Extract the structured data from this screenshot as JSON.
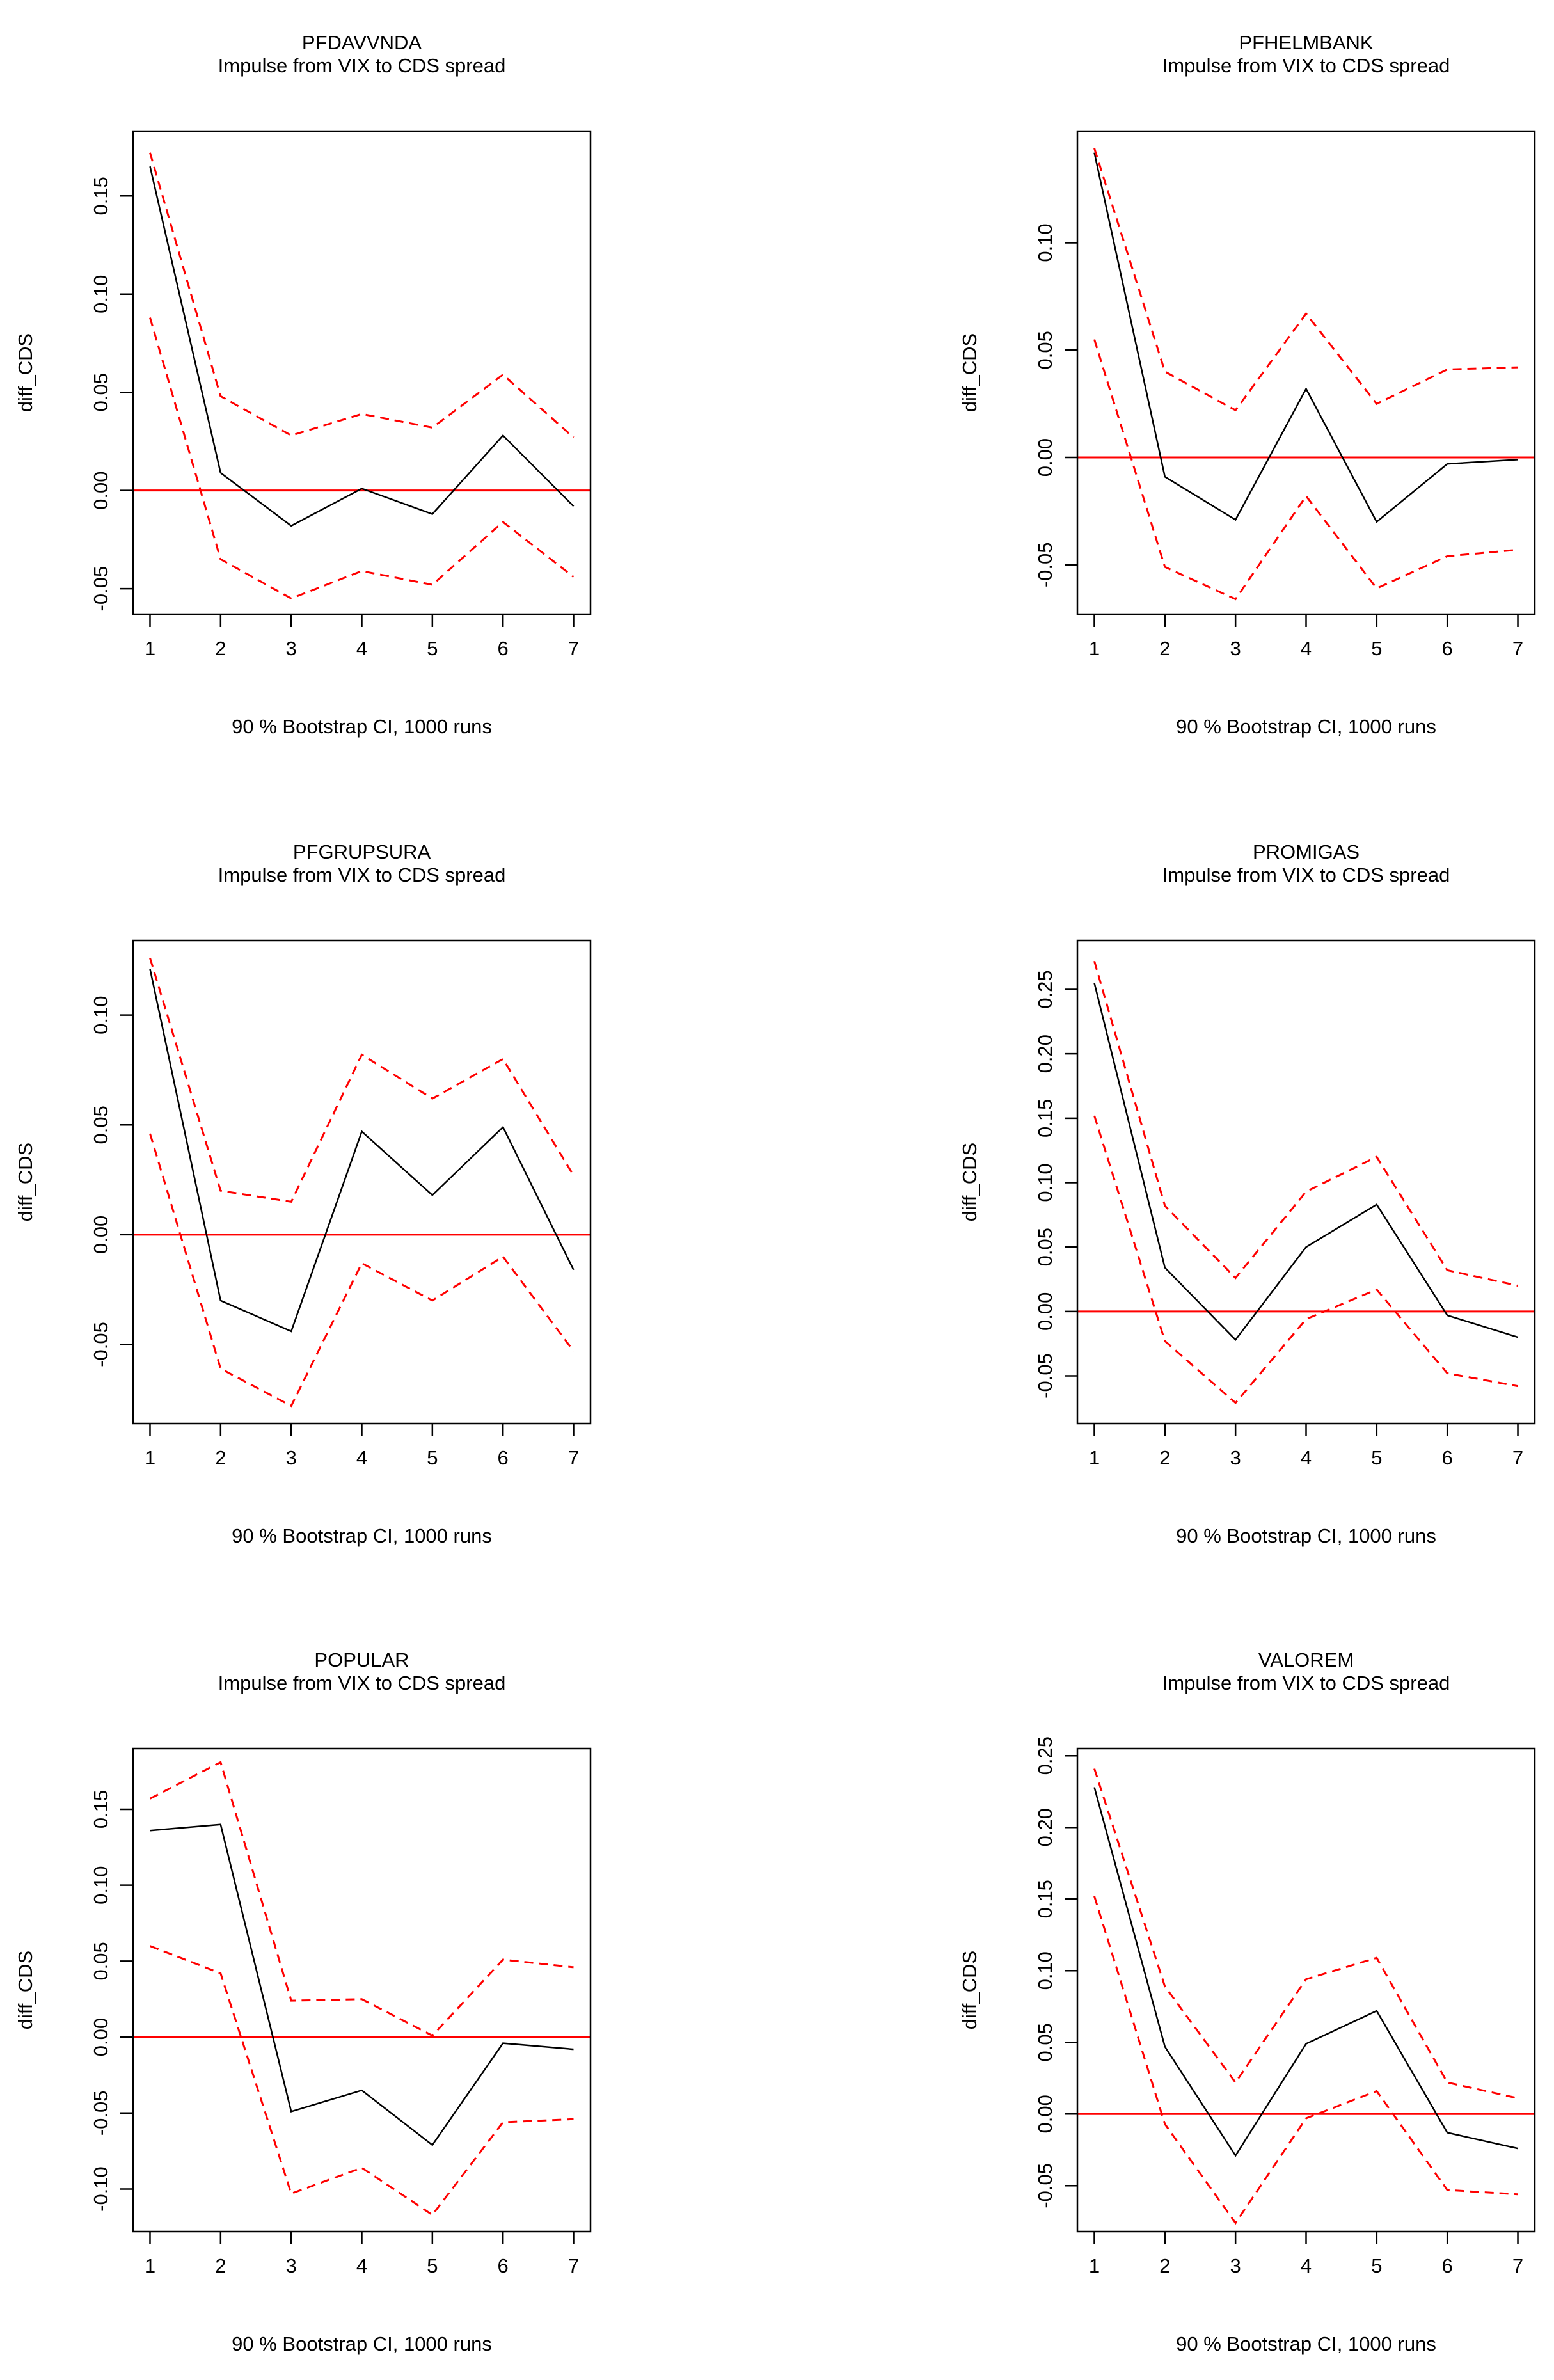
{
  "colors": {
    "irf_line": "#000000",
    "ci_line": "#ff0000",
    "zero_line": "#ff0000",
    "axis": "#000000"
  },
  "chart_data": [
    {
      "type": "line",
      "title": "PFDAVVNDA",
      "subtitle": "Impulse from VIX to CDS spread",
      "xlabel": "90 % Bootstrap CI,  1000 runs",
      "ylabel": "diff_CDS",
      "x": [
        1,
        2,
        3,
        4,
        5,
        6,
        7
      ],
      "xticks": [
        "1",
        "2",
        "3",
        "4",
        "5",
        "6",
        "7"
      ],
      "yticks": [
        -0.05,
        0.0,
        0.05,
        0.1,
        0.15
      ],
      "yticklabels": [
        "-0.05",
        "0.00",
        "0.05",
        "0.10",
        "0.15"
      ],
      "ylim": [
        -0.063,
        0.183
      ],
      "grid": false,
      "series": [
        {
          "values": [
            0.165,
            0.009,
            -0.018,
            0.001,
            -0.012,
            0.028,
            -0.008
          ]
        },
        {
          "values": [
            0.172,
            0.048,
            0.028,
            0.039,
            0.032,
            0.059,
            0.027
          ]
        },
        {
          "values": [
            0.088,
            -0.035,
            -0.055,
            -0.041,
            -0.048,
            -0.016,
            -0.044
          ]
        }
      ]
    },
    {
      "type": "line",
      "title": "PFHELMBANK",
      "subtitle": "Impulse from VIX to CDS spread",
      "xlabel": "90 % Bootstrap CI,  1000 runs",
      "ylabel": "diff_CDS",
      "x": [
        1,
        2,
        3,
        4,
        5,
        6,
        7
      ],
      "xticks": [
        "1",
        "2",
        "3",
        "4",
        "5",
        "6",
        "7"
      ],
      "yticks": [
        -0.05,
        0.0,
        0.05,
        0.1
      ],
      "yticklabels": [
        "-0.05",
        "0.00",
        "0.05",
        "0.10"
      ],
      "ylim": [
        -0.073,
        0.152
      ],
      "grid": false,
      "series": [
        {
          "values": [
            0.142,
            -0.009,
            -0.029,
            0.032,
            -0.03,
            -0.003,
            -0.001
          ]
        },
        {
          "values": [
            0.144,
            0.04,
            0.022,
            0.067,
            0.025,
            0.041,
            0.042
          ]
        },
        {
          "values": [
            0.055,
            -0.051,
            -0.066,
            -0.018,
            -0.061,
            -0.046,
            -0.043
          ]
        }
      ]
    },
    {
      "type": "line",
      "title": "PFGRUPSURA",
      "subtitle": "Impulse from VIX to CDS spread",
      "xlabel": "90 % Bootstrap CI,  1000 runs",
      "ylabel": "diff_CDS",
      "x": [
        1,
        2,
        3,
        4,
        5,
        6,
        7
      ],
      "xticks": [
        "1",
        "2",
        "3",
        "4",
        "5",
        "6",
        "7"
      ],
      "yticks": [
        -0.05,
        0.0,
        0.05,
        0.1
      ],
      "yticklabels": [
        "-0.05",
        "0.00",
        "0.05",
        "0.10"
      ],
      "ylim": [
        -0.086,
        0.134
      ],
      "grid": false,
      "series": [
        {
          "values": [
            0.121,
            -0.03,
            -0.044,
            0.047,
            0.018,
            0.049,
            -0.016
          ]
        },
        {
          "values": [
            0.126,
            0.02,
            0.015,
            0.082,
            0.062,
            0.08,
            0.027
          ]
        },
        {
          "values": [
            0.046,
            -0.061,
            -0.078,
            -0.013,
            -0.03,
            -0.01,
            -0.053
          ]
        }
      ]
    },
    {
      "type": "line",
      "title": "PROMIGAS",
      "subtitle": "Impulse from VIX to CDS spread",
      "xlabel": "90 % Bootstrap CI,  1000 runs",
      "ylabel": "diff_CDS",
      "x": [
        1,
        2,
        3,
        4,
        5,
        6,
        7
      ],
      "xticks": [
        "1",
        "2",
        "3",
        "4",
        "5",
        "6",
        "7"
      ],
      "yticks": [
        -0.05,
        0.0,
        0.05,
        0.1,
        0.15,
        0.2,
        0.25
      ],
      "yticklabels": [
        "-0.05",
        "0.00",
        "0.05",
        "0.10",
        "0.15",
        "0.20",
        "0.25"
      ],
      "ylim": [
        -0.087,
        0.288
      ],
      "grid": false,
      "series": [
        {
          "values": [
            0.255,
            0.034,
            -0.022,
            0.05,
            0.083,
            -0.003,
            -0.02
          ]
        },
        {
          "values": [
            0.272,
            0.082,
            0.026,
            0.093,
            0.12,
            0.032,
            0.02
          ]
        },
        {
          "values": [
            0.152,
            -0.023,
            -0.071,
            -0.006,
            0.017,
            -0.048,
            -0.058
          ]
        }
      ]
    },
    {
      "type": "line",
      "title": "POPULAR",
      "subtitle": "Impulse from VIX to CDS spread",
      "xlabel": "90 % Bootstrap CI,  1000 runs",
      "ylabel": "diff_CDS",
      "x": [
        1,
        2,
        3,
        4,
        5,
        6,
        7
      ],
      "xticks": [
        "1",
        "2",
        "3",
        "4",
        "5",
        "6",
        "7"
      ],
      "yticks": [
        -0.1,
        -0.05,
        0.0,
        0.05,
        0.1,
        0.15
      ],
      "yticklabels": [
        "-0.10",
        "-0.05",
        "0.00",
        "0.05",
        "0.10",
        "0.15"
      ],
      "ylim": [
        -0.128,
        0.19
      ],
      "grid": false,
      "series": [
        {
          "values": [
            0.136,
            0.14,
            -0.049,
            -0.035,
            -0.071,
            -0.004,
            -0.008
          ]
        },
        {
          "values": [
            0.157,
            0.181,
            0.024,
            0.025,
            0.001,
            0.051,
            0.046
          ]
        },
        {
          "values": [
            0.06,
            0.042,
            -0.103,
            -0.086,
            -0.117,
            -0.056,
            -0.054
          ]
        }
      ]
    },
    {
      "type": "line",
      "title": "VALOREM",
      "subtitle": "Impulse from VIX to CDS spread",
      "xlabel": "90 % Bootstrap CI,  1000 runs",
      "ylabel": "diff_CDS",
      "x": [
        1,
        2,
        3,
        4,
        5,
        6,
        7
      ],
      "xticks": [
        "1",
        "2",
        "3",
        "4",
        "5",
        "6",
        "7"
      ],
      "yticks": [
        -0.05,
        0.0,
        0.05,
        0.1,
        0.15,
        0.2,
        0.25
      ],
      "yticklabels": [
        "-0.05",
        "0.00",
        "0.05",
        "0.10",
        "0.15",
        "0.20",
        "0.25"
      ],
      "ylim": [
        -0.082,
        0.255
      ],
      "grid": false,
      "series": [
        {
          "values": [
            0.228,
            0.047,
            -0.029,
            0.049,
            0.072,
            -0.013,
            -0.024
          ]
        },
        {
          "values": [
            0.241,
            0.089,
            0.022,
            0.094,
            0.109,
            0.022,
            0.011
          ]
        },
        {
          "values": [
            0.152,
            -0.007,
            -0.076,
            -0.003,
            0.016,
            -0.053,
            -0.056
          ]
        }
      ]
    }
  ]
}
